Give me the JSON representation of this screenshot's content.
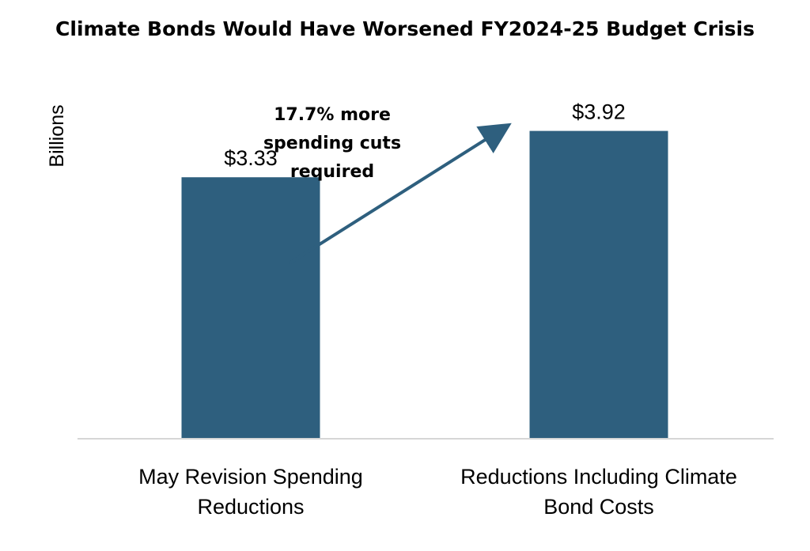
{
  "chart_data": {
    "type": "bar",
    "title": "Climate Bonds Would Have Worsened FY2024-25 Budget Crisis",
    "ylabel": "Billions",
    "xlabel": "",
    "categories": [
      [
        "May Revision Spending",
        "Reductions"
      ],
      [
        "Reductions Including Climate",
        "Bond Costs"
      ]
    ],
    "values": [
      3.33,
      3.92
    ],
    "data_labels": [
      "$3.33",
      "$3.92"
    ],
    "ylim": [
      0,
      4.5
    ],
    "grid": false,
    "bar_color": "#2e5f7e",
    "annotation": {
      "lines": [
        "17.7% more",
        "spending cuts",
        "required"
      ],
      "arrow": "from-first-to-second-bar"
    }
  }
}
